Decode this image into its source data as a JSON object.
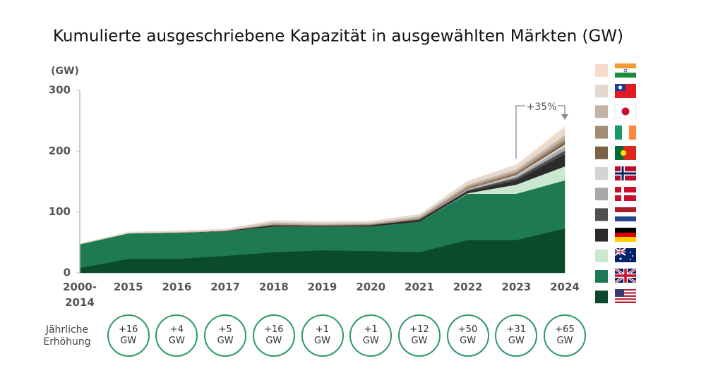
{
  "chart_data": {
    "type": "stacked_area",
    "title": "Kumulierte ausgeschriebene Kapazität in ausgewählten Märkten (GW)",
    "y_label": "(GW)",
    "categories": [
      "2000-\n2014",
      "2015",
      "2016",
      "2017",
      "2018",
      "2019",
      "2020",
      "2021",
      "2022",
      "2023",
      "2024"
    ],
    "ylim": [
      0,
      300
    ],
    "yticks": [
      0,
      100,
      200,
      300
    ],
    "series": [
      {
        "color": "#0b4a2d",
        "values": [
          8,
          23,
          23,
          28,
          34,
          37,
          36,
          34,
          54,
          54,
          73
        ]
      },
      {
        "color": "#1d7a52",
        "values": [
          39,
          42,
          43,
          40,
          42,
          39,
          40,
          50,
          76,
          76,
          79
        ]
      },
      {
        "color": "#c9e8cf",
        "values": [
          0,
          0,
          0,
          0,
          0,
          0,
          0,
          0,
          1,
          15,
          23
        ]
      },
      {
        "color": "#2b2b2b",
        "values": [
          0,
          0,
          0,
          1,
          2,
          1,
          2,
          3,
          3,
          7,
          20
        ]
      },
      {
        "color": "#4f4f4f",
        "values": [
          0,
          0,
          0,
          0,
          1,
          1,
          1,
          1,
          2,
          4,
          6
        ]
      },
      {
        "color": "#a9a9a9",
        "values": [
          0,
          0,
          0,
          0,
          0,
          0,
          0,
          0,
          1,
          3,
          6
        ]
      },
      {
        "color": "#d3d3d3",
        "values": [
          0,
          0,
          0,
          0,
          0,
          0,
          0,
          0,
          1,
          2,
          4
        ]
      },
      {
        "color": "#7a6149",
        "values": [
          0,
          0,
          0,
          0,
          0,
          0,
          0,
          0,
          1,
          2,
          4
        ]
      },
      {
        "color": "#a38c75",
        "values": [
          0,
          0,
          0,
          0,
          1,
          1,
          1,
          2,
          3,
          3,
          5
        ]
      },
      {
        "color": "#c4b3a4",
        "values": [
          0,
          0,
          1,
          1,
          3,
          2,
          2,
          3,
          3,
          4,
          6
        ]
      },
      {
        "color": "#e2dad2",
        "values": [
          1,
          2,
          2,
          2,
          3,
          3,
          3,
          3,
          5,
          6,
          8
        ]
      },
      {
        "color": "#f6dccb",
        "values": [
          0,
          0,
          0,
          0,
          0,
          0,
          0,
          0,
          1,
          2,
          6
        ]
      }
    ],
    "annotation": "+35%",
    "annual_increase": {
      "label": "Jährliche Erhöhung",
      "values": [
        16,
        4,
        5,
        16,
        1,
        1,
        12,
        50,
        31,
        65
      ],
      "value_labels": [
        "+16 GW",
        "+4 GW",
        "+5 GW",
        "+16 GW",
        "+1 GW",
        "+1 GW",
        "+12 GW",
        "+50 GW",
        "+31 GW",
        "+65 GW"
      ]
    }
  }
}
